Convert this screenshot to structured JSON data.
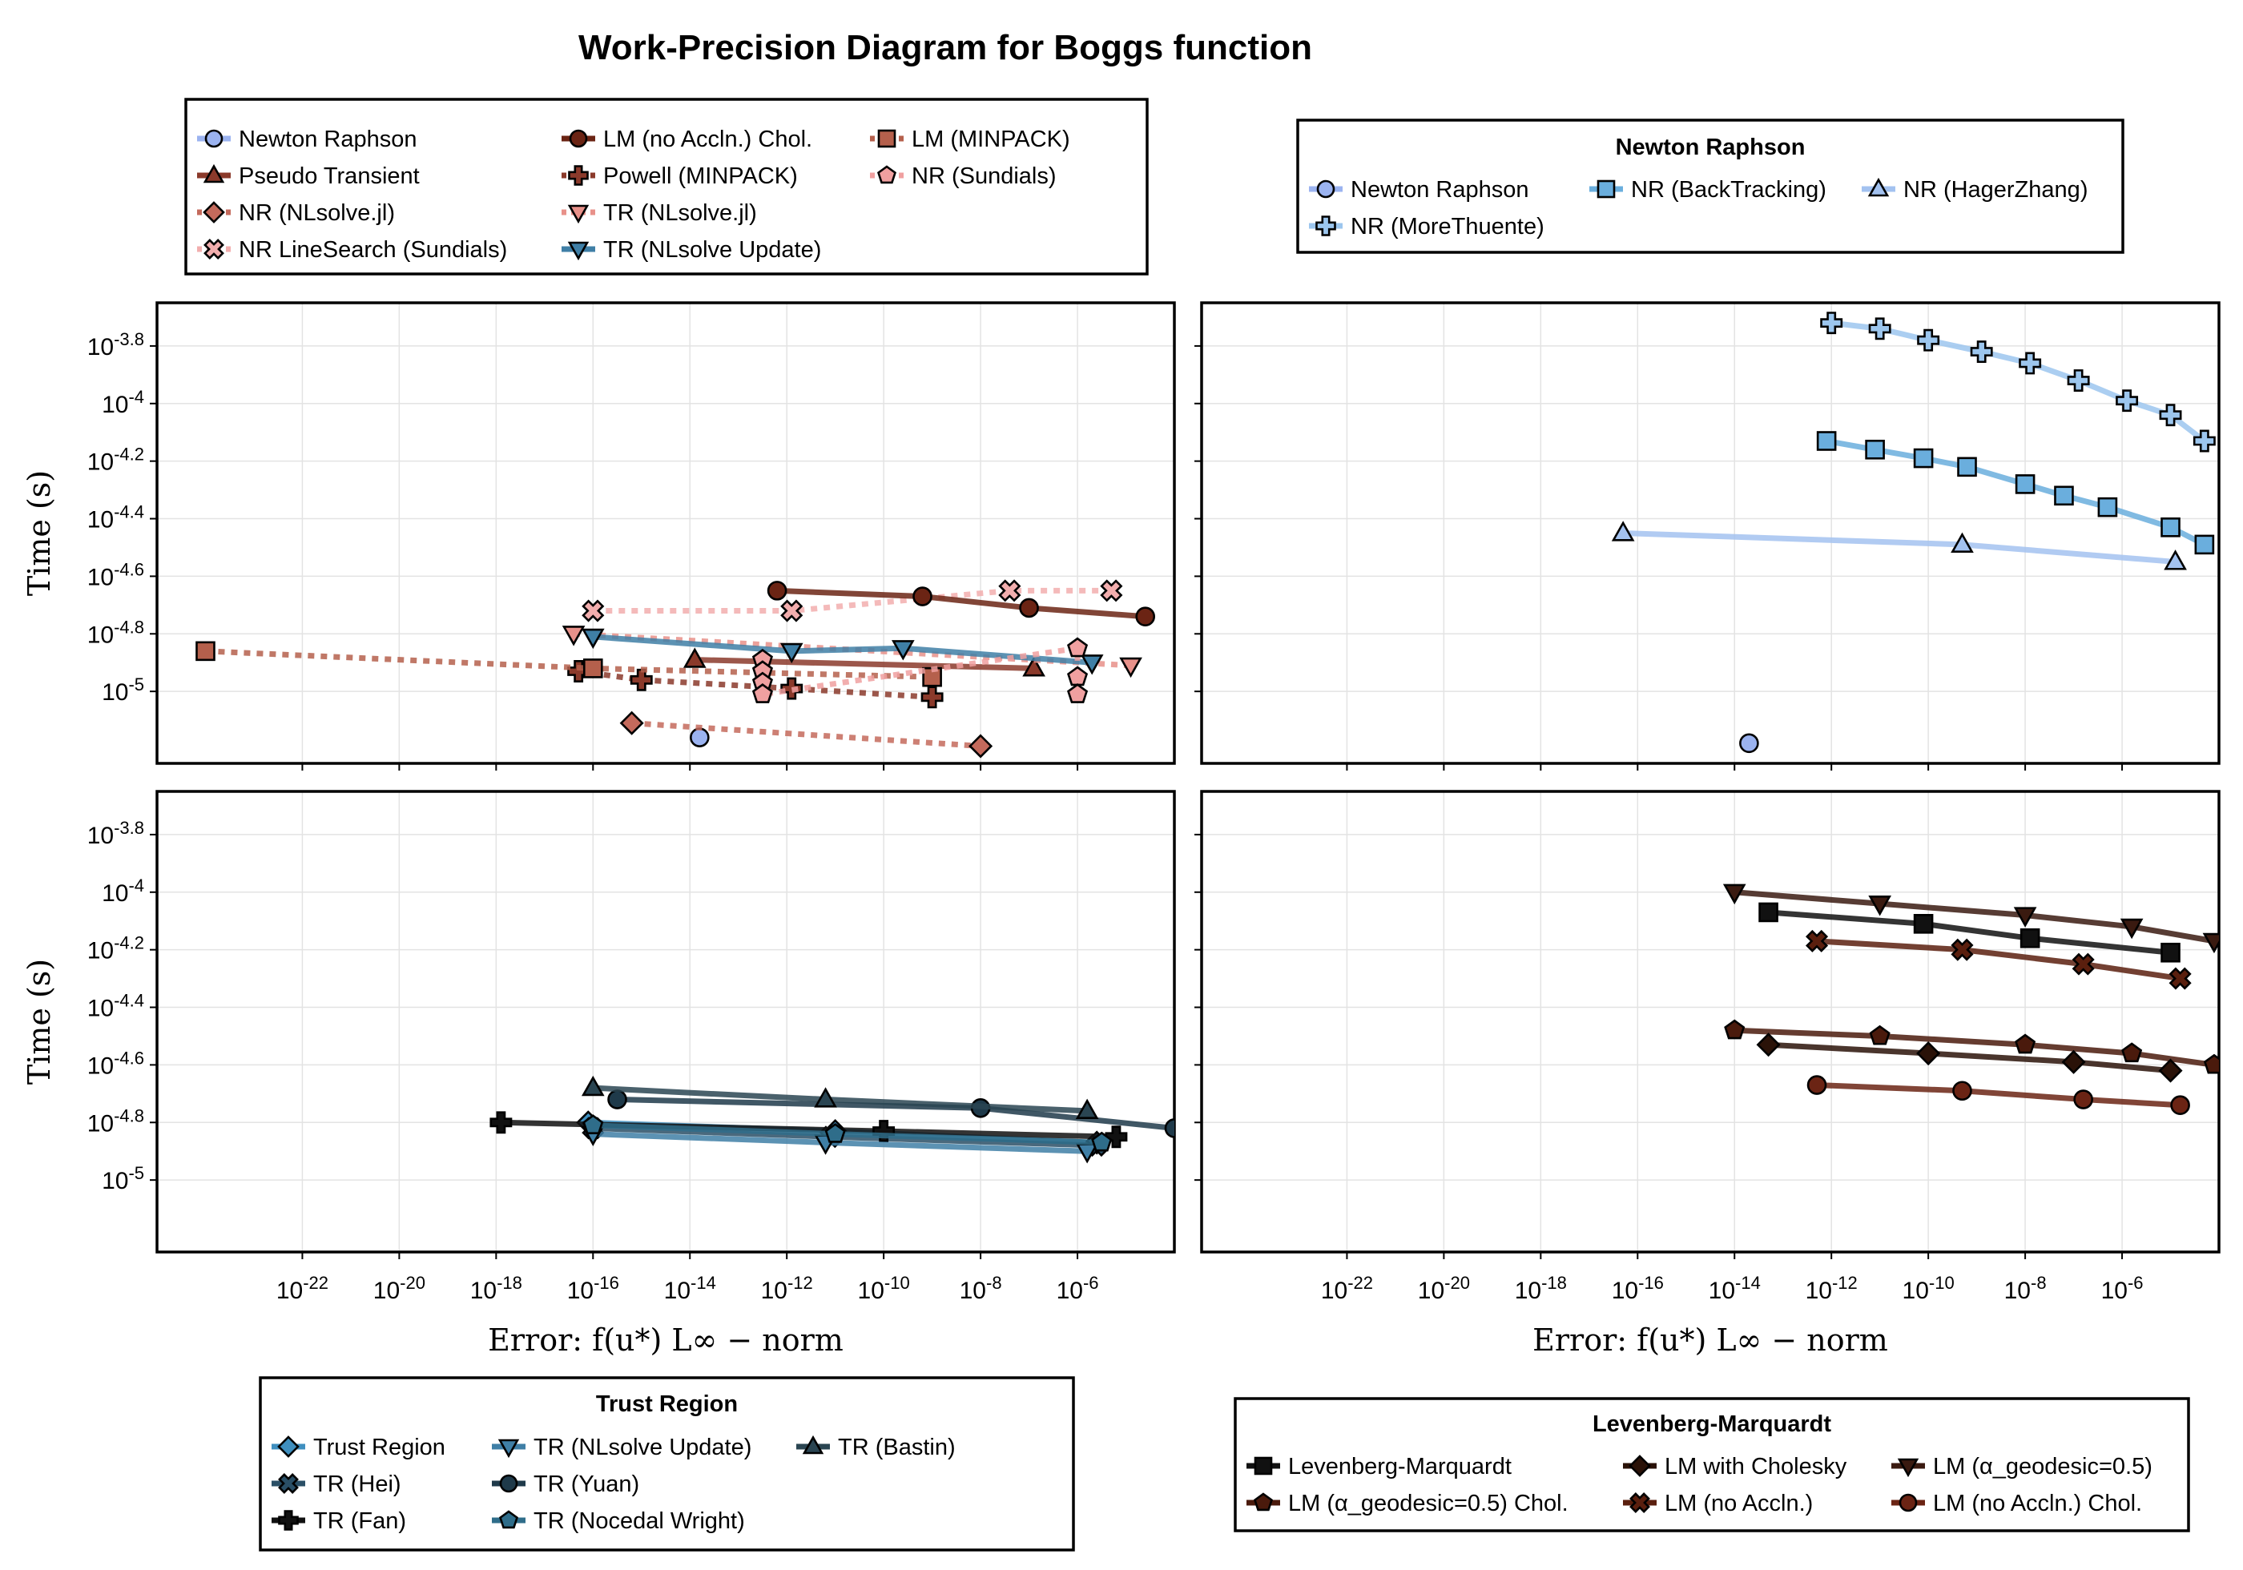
{
  "figure": {
    "title": "Work-Precision Diagram for Boggs function",
    "ylabel": "Time (s)",
    "xlabel": "Error: f(u*) L∞ − norm",
    "y_tick_labels": [
      {
        "exp": "-3.8",
        "value": -3.8
      },
      {
        "exp": "-4",
        "value": -4.0
      },
      {
        "exp": "-4.2",
        "value": -4.2
      },
      {
        "exp": "-4.4",
        "value": -4.4
      },
      {
        "exp": "-4.6",
        "value": -4.6
      },
      {
        "exp": "-4.8",
        "value": -4.8
      },
      {
        "exp": "-5",
        "value": -5.0
      }
    ],
    "x_tick_labels": [
      {
        "exp": "-22",
        "value": -22
      },
      {
        "exp": "-20",
        "value": -20
      },
      {
        "exp": "-18",
        "value": -18
      },
      {
        "exp": "-16",
        "value": -16
      },
      {
        "exp": "-14",
        "value": -14
      },
      {
        "exp": "-12",
        "value": -12
      },
      {
        "exp": "-10",
        "value": -10
      },
      {
        "exp": "-8",
        "value": -8
      },
      {
        "exp": "-6",
        "value": -6
      }
    ]
  },
  "legends": {
    "top_left": {
      "title": "",
      "entries": [
        {
          "label": "Newton Raphson",
          "marker": "circle",
          "color": "#9bb3f0",
          "dash": "solid"
        },
        {
          "label": "Pseudo Transient",
          "marker": "triangle",
          "color": "#8b3a2b",
          "dash": "solid"
        },
        {
          "label": "NR (NLsolve.jl)",
          "marker": "diamond",
          "color": "#c46a5c",
          "dash": "dot"
        },
        {
          "label": "NR LineSearch (Sundials)",
          "marker": "xcross",
          "color": "#f2aeae",
          "dash": "dot"
        },
        {
          "label": "LM (no Accln.) Chol.",
          "marker": "circle",
          "color": "#6b2414",
          "dash": "solid"
        },
        {
          "label": "Powell (MINPACK)",
          "marker": "plus",
          "color": "#8b3a2b",
          "dash": "dot"
        },
        {
          "label": "TR (NLsolve.jl)",
          "marker": "dtriangle",
          "color": "#e8918a",
          "dash": "dot"
        },
        {
          "label": "TR (NLsolve Update)",
          "marker": "dtriangle",
          "color": "#3f7fa6",
          "dash": "solid"
        },
        {
          "label": "LM (MINPACK)",
          "marker": "square",
          "color": "#b5604c",
          "dash": "dot"
        },
        {
          "label": "NR (Sundials)",
          "marker": "pentagon",
          "color": "#f0a0a0",
          "dash": "dot"
        }
      ]
    },
    "top_right": {
      "title": "Newton Raphson",
      "entries": [
        {
          "label": "Newton Raphson",
          "marker": "circle",
          "color": "#9bb3f0",
          "dash": "solid"
        },
        {
          "label": "NR (BackTracking)",
          "marker": "square",
          "color": "#6aaedd",
          "dash": "solid"
        },
        {
          "label": "NR (HagerZhang)",
          "marker": "triangle",
          "color": "#a3c2f0",
          "dash": "solid"
        },
        {
          "label": "NR (MoreThuente)",
          "marker": "plus",
          "color": "#9cc6ee",
          "dash": "solid"
        }
      ]
    },
    "bottom_left": {
      "title": "Trust Region",
      "entries": [
        {
          "label": "Trust Region",
          "marker": "diamond",
          "color": "#3f8fbf",
          "dash": "solid"
        },
        {
          "label": "TR (Hei)",
          "marker": "xcross",
          "color": "#2a4f66",
          "dash": "solid"
        },
        {
          "label": "TR (Fan)",
          "marker": "plus",
          "color": "#111111",
          "dash": "solid"
        },
        {
          "label": "TR (NLsolve Update)",
          "marker": "dtriangle",
          "color": "#3f7fa6",
          "dash": "solid"
        },
        {
          "label": "TR (Yuan)",
          "marker": "circle",
          "color": "#1f3a4a",
          "dash": "solid"
        },
        {
          "label": "TR (Nocedal Wright)",
          "marker": "pentagon",
          "color": "#2f6d8a",
          "dash": "solid"
        },
        {
          "label": "TR (Bastin)",
          "marker": "triangle",
          "color": "#2a4552",
          "dash": "solid"
        }
      ]
    },
    "bottom_right": {
      "title": "Levenberg-Marquardt",
      "entries": [
        {
          "label": "Levenberg-Marquardt",
          "marker": "square",
          "color": "#111111",
          "dash": "solid"
        },
        {
          "label": "LM (α_geodesic=0.5) Chol.",
          "marker": "pentagon",
          "color": "#4a1a0c",
          "dash": "solid"
        },
        {
          "label": "LM with Cholesky",
          "marker": "diamond",
          "color": "#2a1208",
          "dash": "solid"
        },
        {
          "label": "LM (no Accln.)",
          "marker": "xcross",
          "color": "#5a1f0e",
          "dash": "solid"
        },
        {
          "label": "LM (α_geodesic=0.5)",
          "marker": "dtriangle",
          "color": "#3a1a10",
          "dash": "solid"
        },
        {
          "label": "LM (no Accln.) Chol.",
          "marker": "circle",
          "color": "#6b2414",
          "dash": "solid"
        }
      ]
    }
  },
  "chart_data": [
    {
      "type": "line",
      "panel": "top-left",
      "x_scale": "log10",
      "y_scale": "log10",
      "xlim": [
        -25,
        -4
      ],
      "ylim": [
        -5.25,
        -3.65
      ],
      "xlabel": "",
      "ylabel": "Time (s)",
      "series": [
        {
          "name": "Newton Raphson",
          "marker": "circle",
          "color": "#9bb3f0",
          "dash": "solid",
          "points": [
            [
              -13.8,
              -5.16
            ]
          ]
        },
        {
          "name": "Pseudo Transient",
          "marker": "triangle",
          "color": "#8b3a2b",
          "dash": "solid",
          "points": [
            [
              -13.9,
              -4.89
            ],
            [
              -6.9,
              -4.92
            ]
          ]
        },
        {
          "name": "NR (NLsolve.jl)",
          "marker": "diamond",
          "color": "#c46a5c",
          "dash": "dot",
          "points": [
            [
              -15.2,
              -5.11
            ],
            [
              -8.0,
              -5.19
            ]
          ]
        },
        {
          "name": "NR LineSearch (Sundials)",
          "marker": "xcross",
          "color": "#f2aeae",
          "dash": "dot",
          "points": [
            [
              -16.0,
              -4.72
            ],
            [
              -11.9,
              -4.72
            ],
            [
              -7.4,
              -4.65
            ],
            [
              -5.3,
              -4.65
            ]
          ]
        },
        {
          "name": "LM (no Accln.) Chol.",
          "marker": "circle",
          "color": "#6b2414",
          "dash": "solid",
          "points": [
            [
              -12.2,
              -4.65
            ],
            [
              -9.2,
              -4.67
            ],
            [
              -7.0,
              -4.71
            ],
            [
              -4.6,
              -4.74
            ]
          ]
        },
        {
          "name": "Powell (MINPACK)",
          "marker": "plus",
          "color": "#8b3a2b",
          "dash": "dot",
          "points": [
            [
              -16.3,
              -4.93
            ],
            [
              -15.0,
              -4.96
            ],
            [
              -11.9,
              -4.99
            ],
            [
              -9.0,
              -5.02
            ]
          ]
        },
        {
          "name": "TR (NLsolve.jl)",
          "marker": "dtriangle",
          "color": "#e8918a",
          "dash": "dot",
          "points": [
            [
              -16.4,
              -4.8
            ],
            [
              -4.9,
              -4.91
            ]
          ]
        },
        {
          "name": "TR (NLsolve Update)",
          "marker": "dtriangle",
          "color": "#3f7fa6",
          "dash": "solid",
          "points": [
            [
              -16.0,
              -4.81
            ],
            [
              -11.9,
              -4.86
            ],
            [
              -9.6,
              -4.85
            ],
            [
              -5.7,
              -4.9
            ]
          ]
        },
        {
          "name": "LM (MINPACK)",
          "marker": "square",
          "color": "#b5604c",
          "dash": "dot",
          "points": [
            [
              -24.0,
              -4.86
            ],
            [
              -16.0,
              -4.92
            ],
            [
              -9.0,
              -4.95
            ]
          ]
        },
        {
          "name": "NR (Sundials)",
          "marker": "pentagon",
          "color": "#f0a0a0",
          "dash": "dot",
          "points": [
            [
              -12.5,
              -4.89
            ],
            [
              -12.5,
              -4.93
            ],
            [
              -12.5,
              -4.97
            ],
            [
              -12.5,
              -5.01
            ],
            [
              -6.0,
              -4.85
            ],
            [
              -6.0,
              -4.95
            ],
            [
              -6.0,
              -5.01
            ]
          ]
        }
      ]
    },
    {
      "type": "line",
      "panel": "top-right",
      "x_scale": "log10",
      "y_scale": "log10",
      "xlim": [
        -25,
        -4
      ],
      "ylim": [
        -5.25,
        -3.65
      ],
      "xlabel": "",
      "ylabel": "",
      "series": [
        {
          "name": "Newton Raphson",
          "marker": "circle",
          "color": "#9bb3f0",
          "dash": "solid",
          "points": [
            [
              -13.7,
              -5.18
            ]
          ]
        },
        {
          "name": "NR (BackTracking)",
          "marker": "square",
          "color": "#6aaedd",
          "dash": "solid",
          "points": [
            [
              -12.1,
              -4.13
            ],
            [
              -11.1,
              -4.16
            ],
            [
              -10.1,
              -4.19
            ],
            [
              -9.2,
              -4.22
            ],
            [
              -8.0,
              -4.28
            ],
            [
              -7.2,
              -4.32
            ],
            [
              -6.3,
              -4.36
            ],
            [
              -5.0,
              -4.43
            ],
            [
              -4.3,
              -4.49
            ]
          ]
        },
        {
          "name": "NR (HagerZhang)",
          "marker": "triangle",
          "color": "#a3c2f0",
          "dash": "solid",
          "points": [
            [
              -16.3,
              -4.45
            ],
            [
              -9.3,
              -4.49
            ],
            [
              -4.9,
              -4.55
            ]
          ]
        },
        {
          "name": "NR (MoreThuente)",
          "marker": "plus",
          "color": "#9cc6ee",
          "dash": "solid",
          "points": [
            [
              -12.0,
              -3.72
            ],
            [
              -11.0,
              -3.74
            ],
            [
              -10.0,
              -3.78
            ],
            [
              -8.9,
              -3.82
            ],
            [
              -7.9,
              -3.86
            ],
            [
              -6.9,
              -3.92
            ],
            [
              -5.9,
              -3.99
            ],
            [
              -5.0,
              -4.04
            ],
            [
              -4.3,
              -4.13
            ]
          ]
        }
      ]
    },
    {
      "type": "line",
      "panel": "bottom-left",
      "x_scale": "log10",
      "y_scale": "log10",
      "xlim": [
        -25,
        -4
      ],
      "ylim": [
        -5.25,
        -3.65
      ],
      "xlabel": "Error: f(u*) L∞ − norm",
      "ylabel": "Time (s)",
      "series": [
        {
          "name": "Trust Region",
          "marker": "diamond",
          "color": "#3f8fbf",
          "dash": "solid",
          "points": [
            [
              -16.1,
              -4.8
            ],
            [
              -11.0,
              -4.83
            ],
            [
              -5.6,
              -4.87
            ]
          ]
        },
        {
          "name": "TR (Hei)",
          "marker": "xcross",
          "color": "#2a4f66",
          "dash": "solid",
          "points": [
            [
              -16.0,
              -4.82
            ],
            [
              -11.1,
              -4.85
            ],
            [
              -5.6,
              -4.88
            ]
          ]
        },
        {
          "name": "TR (Fan)",
          "marker": "plus",
          "color": "#111111",
          "dash": "solid",
          "points": [
            [
              -17.9,
              -4.8
            ],
            [
              -10.0,
              -4.83
            ],
            [
              -5.2,
              -4.85
            ]
          ]
        },
        {
          "name": "TR (NLsolve Update)",
          "marker": "dtriangle",
          "color": "#3f7fa6",
          "dash": "solid",
          "points": [
            [
              -16.0,
              -4.84
            ],
            [
              -11.2,
              -4.87
            ],
            [
              -5.8,
              -4.9
            ]
          ]
        },
        {
          "name": "TR (Yuan)",
          "marker": "circle",
          "color": "#1f3a4a",
          "dash": "solid",
          "points": [
            [
              -15.5,
              -4.72
            ],
            [
              -8.0,
              -4.75
            ],
            [
              -4.0,
              -4.82
            ]
          ]
        },
        {
          "name": "TR (Nocedal Wright)",
          "marker": "pentagon",
          "color": "#2f6d8a",
          "dash": "solid",
          "points": [
            [
              -16.0,
              -4.81
            ],
            [
              -11.0,
              -4.84
            ],
            [
              -5.5,
              -4.87
            ]
          ]
        },
        {
          "name": "TR (Bastin)",
          "marker": "triangle",
          "color": "#2a4552",
          "dash": "solid",
          "points": [
            [
              -16.0,
              -4.68
            ],
            [
              -11.2,
              -4.72
            ],
            [
              -5.8,
              -4.76
            ]
          ]
        }
      ]
    },
    {
      "type": "line",
      "panel": "bottom-right",
      "x_scale": "log10",
      "y_scale": "log10",
      "xlim": [
        -25,
        -4
      ],
      "ylim": [
        -5.25,
        -3.65
      ],
      "xlabel": "Error: f(u*) L∞ − norm",
      "ylabel": "",
      "series": [
        {
          "name": "Levenberg-Marquardt",
          "marker": "square",
          "color": "#111111",
          "dash": "solid",
          "points": [
            [
              -13.3,
              -4.07
            ],
            [
              -10.1,
              -4.11
            ],
            [
              -7.9,
              -4.16
            ],
            [
              -5.0,
              -4.21
            ]
          ]
        },
        {
          "name": "LM (α_geodesic=0.5) Chol.",
          "marker": "pentagon",
          "color": "#4a1a0c",
          "dash": "solid",
          "points": [
            [
              -14.0,
              -4.48
            ],
            [
              -11.0,
              -4.5
            ],
            [
              -8.0,
              -4.53
            ],
            [
              -5.8,
              -4.56
            ],
            [
              -4.1,
              -4.6
            ]
          ]
        },
        {
          "name": "LM with Cholesky",
          "marker": "diamond",
          "color": "#2a1208",
          "dash": "solid",
          "points": [
            [
              -13.3,
              -4.53
            ],
            [
              -10.0,
              -4.56
            ],
            [
              -7.0,
              -4.59
            ],
            [
              -5.0,
              -4.62
            ]
          ]
        },
        {
          "name": "LM (no Accln.)",
          "marker": "xcross",
          "color": "#5a1f0e",
          "dash": "solid",
          "points": [
            [
              -12.3,
              -4.17
            ],
            [
              -9.3,
              -4.2
            ],
            [
              -6.8,
              -4.25
            ],
            [
              -4.8,
              -4.3
            ]
          ]
        },
        {
          "name": "LM (α_geodesic=0.5)",
          "marker": "dtriangle",
          "color": "#3a1a10",
          "dash": "solid",
          "points": [
            [
              -14.0,
              -4.0
            ],
            [
              -11.0,
              -4.04
            ],
            [
              -8.0,
              -4.08
            ],
            [
              -5.8,
              -4.12
            ],
            [
              -4.1,
              -4.17
            ]
          ]
        },
        {
          "name": "LM (no Accln.) Chol.",
          "marker": "circle",
          "color": "#6b2414",
          "dash": "solid",
          "points": [
            [
              -12.3,
              -4.67
            ],
            [
              -9.3,
              -4.69
            ],
            [
              -6.8,
              -4.72
            ],
            [
              -4.8,
              -4.74
            ]
          ]
        }
      ]
    }
  ]
}
